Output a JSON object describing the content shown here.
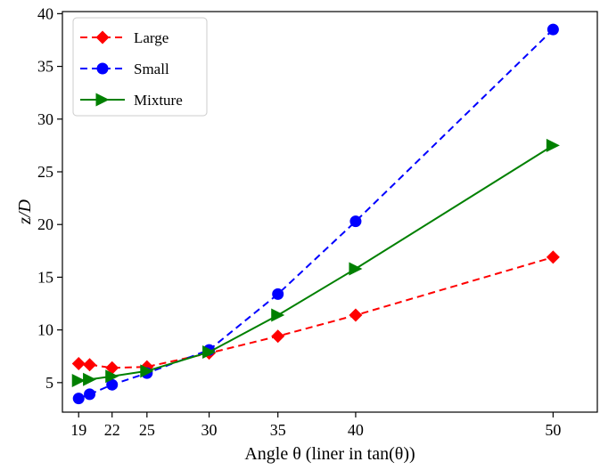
{
  "chart_data": {
    "type": "line",
    "xlabel": "Angle θ (liner in tan(θ))",
    "ylabel": "z/D",
    "x_scale": "tan",
    "xlim": [
      17.5,
      51.8
    ],
    "ylim": [
      2.2,
      40.2
    ],
    "x_ticks": [
      19,
      22,
      25,
      30,
      35,
      40,
      50
    ],
    "y_ticks": [
      5,
      10,
      15,
      20,
      25,
      30,
      35,
      40
    ],
    "grid": false,
    "legend_position": "top-left",
    "series": [
      {
        "name": "Large",
        "color": "#ff0000",
        "line": "dashed",
        "marker": "diamond",
        "x": [
          19,
          20,
          22,
          25,
          30,
          35,
          40,
          50
        ],
        "y": [
          6.8,
          6.7,
          6.4,
          6.5,
          7.8,
          9.4,
          11.4,
          16.9
        ]
      },
      {
        "name": "Small",
        "color": "#0000ff",
        "line": "dashed",
        "marker": "circle",
        "x": [
          19,
          20,
          22,
          25,
          30,
          35,
          40,
          50
        ],
        "y": [
          3.5,
          3.9,
          4.8,
          5.9,
          8.1,
          13.4,
          20.3,
          38.5
        ]
      },
      {
        "name": "Mixture",
        "color": "#008000",
        "line": "solid",
        "marker": "triangle-right",
        "x": [
          19,
          20,
          22,
          25,
          30,
          35,
          40,
          50
        ],
        "y": [
          5.2,
          5.3,
          5.6,
          6.1,
          7.9,
          11.4,
          15.8,
          27.5
        ]
      }
    ]
  }
}
